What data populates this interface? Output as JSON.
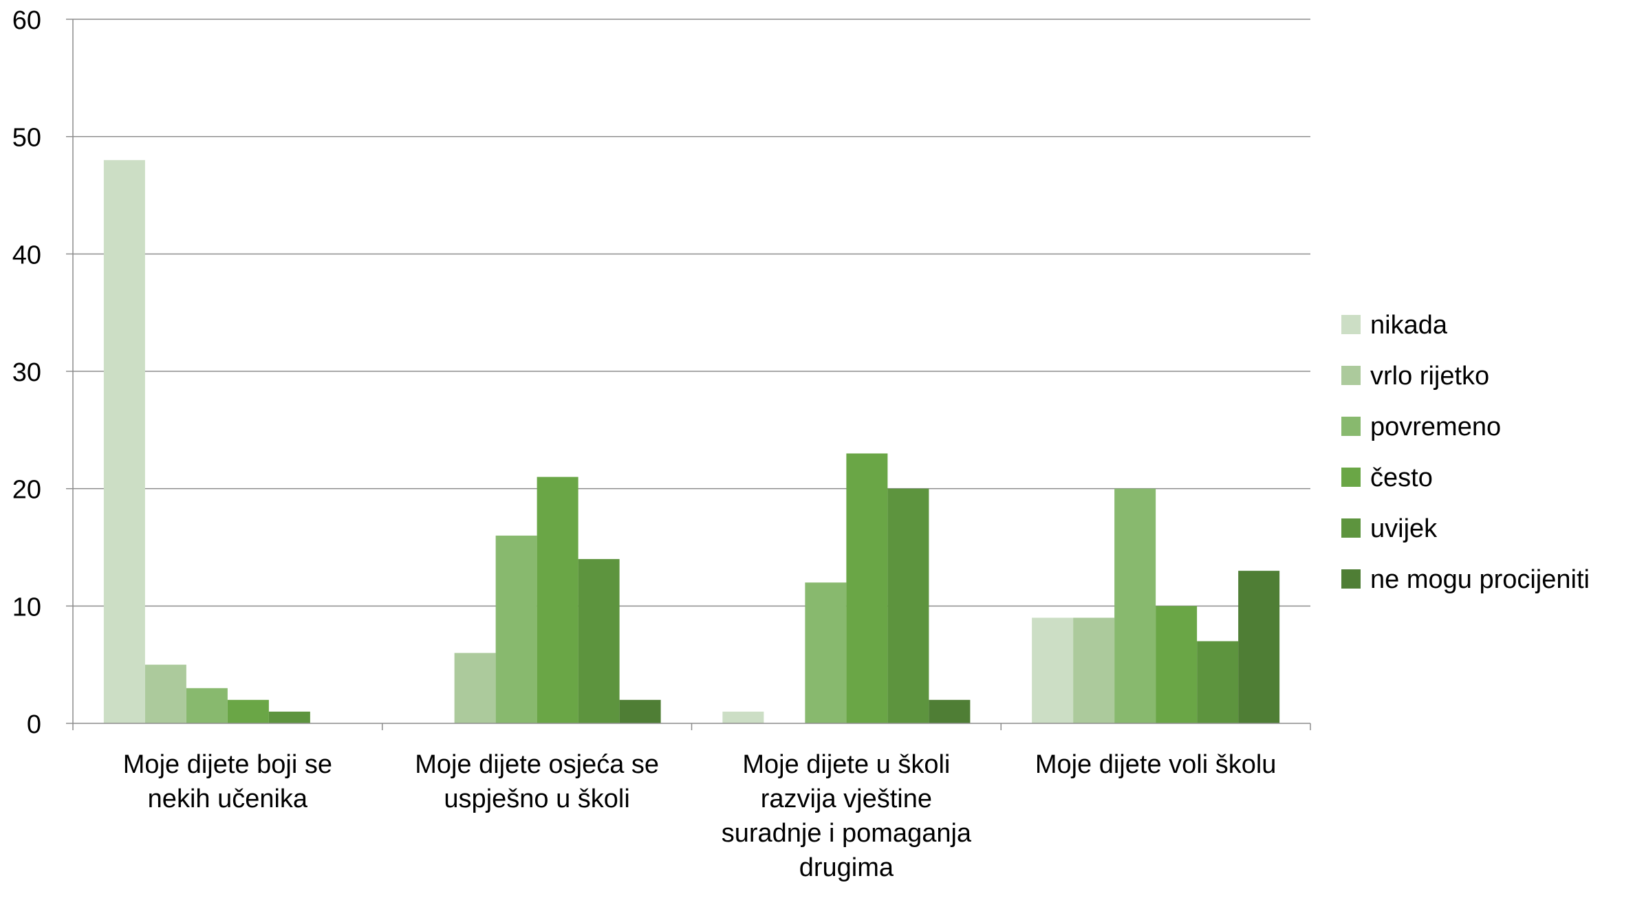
{
  "chart_data": {
    "type": "bar",
    "categories": [
      [
        "Moje dijete boji se",
        "nekih učenika"
      ],
      [
        "Moje dijete osjeća se",
        "uspješno u školi"
      ],
      [
        "Moje dijete u školi",
        "razvija vještine",
        "suradnje i pomaganja",
        "drugima"
      ],
      [
        "Moje dijete voli školu"
      ]
    ],
    "series": [
      {
        "name": "nikada",
        "color": "#CCDEC5",
        "values": [
          48,
          0,
          1,
          9
        ]
      },
      {
        "name": "vrlo rijetko",
        "color": "#ACCA9C",
        "values": [
          5,
          6,
          0,
          9
        ]
      },
      {
        "name": "povremeno",
        "color": "#88B96E",
        "values": [
          3,
          16,
          12,
          20
        ]
      },
      {
        "name": "često",
        "color": "#6AA646",
        "values": [
          2,
          21,
          23,
          10
        ]
      },
      {
        "name": "uvijek",
        "color": "#5D943E",
        "values": [
          1,
          14,
          20,
          7
        ]
      },
      {
        "name": "ne mogu procijeniti",
        "color": "#4F7E35",
        "values": [
          0,
          2,
          2,
          13
        ]
      }
    ],
    "ylim": [
      0,
      60
    ],
    "yticks": [
      "0",
      "10",
      "20",
      "30",
      "40",
      "50",
      "60"
    ],
    "grid": true,
    "legend_position": "right",
    "xlabel": "",
    "ylabel": "",
    "title": ""
  }
}
